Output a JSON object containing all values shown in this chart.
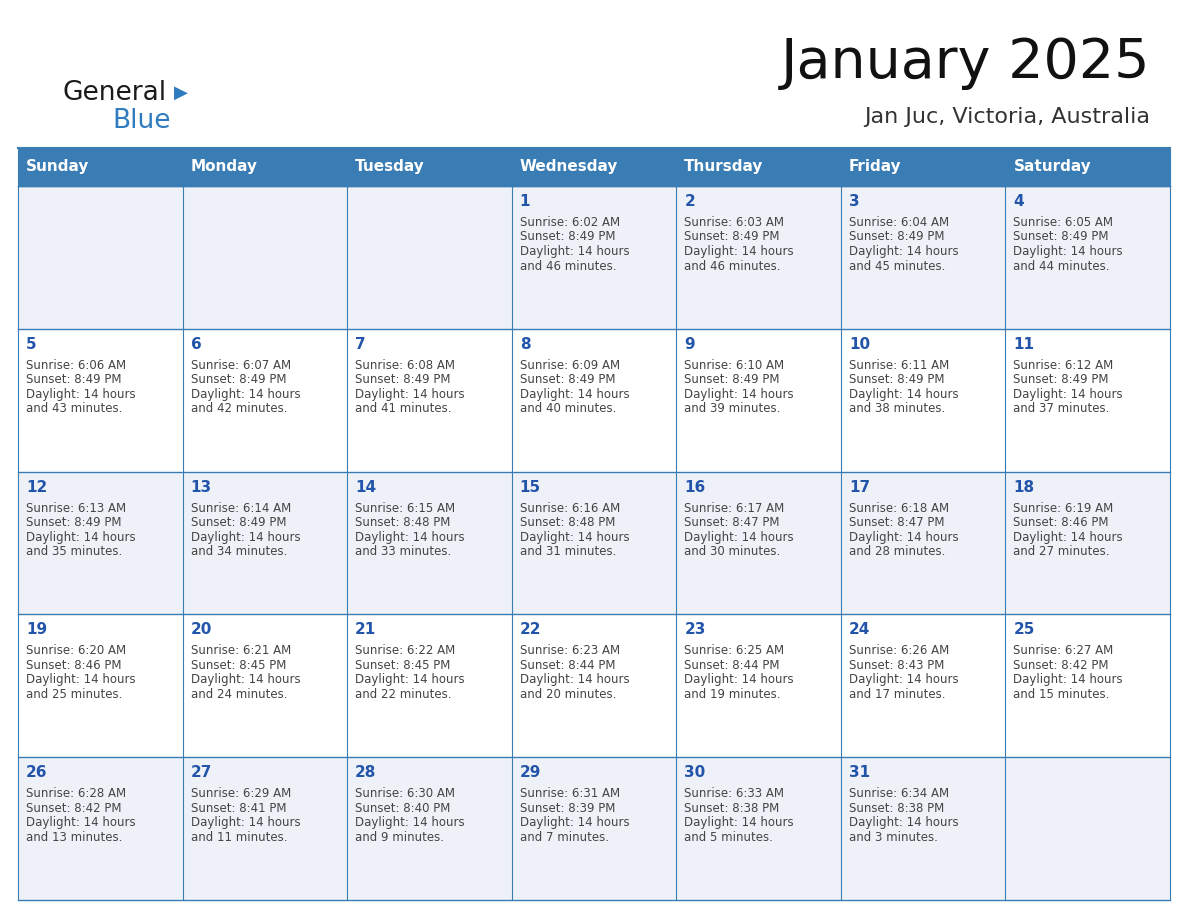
{
  "title": "January 2025",
  "subtitle": "Jan Juc, Victoria, Australia",
  "days_of_week": [
    "Sunday",
    "Monday",
    "Tuesday",
    "Wednesday",
    "Thursday",
    "Friday",
    "Saturday"
  ],
  "header_bg": "#3a7db5",
  "header_text": "#ffffff",
  "cell_bg_light": "#eef2f8",
  "cell_bg_white": "#ffffff",
  "day_num_color": "#2255aa",
  "text_color": "#444444",
  "border_color": "#3a7db5",
  "row_separator_color": "#3a7db5",
  "calendar": [
    [
      {
        "day": null,
        "sunrise": null,
        "sunset": null,
        "daylight": null
      },
      {
        "day": null,
        "sunrise": null,
        "sunset": null,
        "daylight": null
      },
      {
        "day": null,
        "sunrise": null,
        "sunset": null,
        "daylight": null
      },
      {
        "day": 1,
        "sunrise": "6:02 AM",
        "sunset": "8:49 PM",
        "daylight": "14 hours and 46 minutes."
      },
      {
        "day": 2,
        "sunrise": "6:03 AM",
        "sunset": "8:49 PM",
        "daylight": "14 hours and 46 minutes."
      },
      {
        "day": 3,
        "sunrise": "6:04 AM",
        "sunset": "8:49 PM",
        "daylight": "14 hours and 45 minutes."
      },
      {
        "day": 4,
        "sunrise": "6:05 AM",
        "sunset": "8:49 PM",
        "daylight": "14 hours and 44 minutes."
      }
    ],
    [
      {
        "day": 5,
        "sunrise": "6:06 AM",
        "sunset": "8:49 PM",
        "daylight": "14 hours and 43 minutes."
      },
      {
        "day": 6,
        "sunrise": "6:07 AM",
        "sunset": "8:49 PM",
        "daylight": "14 hours and 42 minutes."
      },
      {
        "day": 7,
        "sunrise": "6:08 AM",
        "sunset": "8:49 PM",
        "daylight": "14 hours and 41 minutes."
      },
      {
        "day": 8,
        "sunrise": "6:09 AM",
        "sunset": "8:49 PM",
        "daylight": "14 hours and 40 minutes."
      },
      {
        "day": 9,
        "sunrise": "6:10 AM",
        "sunset": "8:49 PM",
        "daylight": "14 hours and 39 minutes."
      },
      {
        "day": 10,
        "sunrise": "6:11 AM",
        "sunset": "8:49 PM",
        "daylight": "14 hours and 38 minutes."
      },
      {
        "day": 11,
        "sunrise": "6:12 AM",
        "sunset": "8:49 PM",
        "daylight": "14 hours and 37 minutes."
      }
    ],
    [
      {
        "day": 12,
        "sunrise": "6:13 AM",
        "sunset": "8:49 PM",
        "daylight": "14 hours and 35 minutes."
      },
      {
        "day": 13,
        "sunrise": "6:14 AM",
        "sunset": "8:49 PM",
        "daylight": "14 hours and 34 minutes."
      },
      {
        "day": 14,
        "sunrise": "6:15 AM",
        "sunset": "8:48 PM",
        "daylight": "14 hours and 33 minutes."
      },
      {
        "day": 15,
        "sunrise": "6:16 AM",
        "sunset": "8:48 PM",
        "daylight": "14 hours and 31 minutes."
      },
      {
        "day": 16,
        "sunrise": "6:17 AM",
        "sunset": "8:47 PM",
        "daylight": "14 hours and 30 minutes."
      },
      {
        "day": 17,
        "sunrise": "6:18 AM",
        "sunset": "8:47 PM",
        "daylight": "14 hours and 28 minutes."
      },
      {
        "day": 18,
        "sunrise": "6:19 AM",
        "sunset": "8:46 PM",
        "daylight": "14 hours and 27 minutes."
      }
    ],
    [
      {
        "day": 19,
        "sunrise": "6:20 AM",
        "sunset": "8:46 PM",
        "daylight": "14 hours and 25 minutes."
      },
      {
        "day": 20,
        "sunrise": "6:21 AM",
        "sunset": "8:45 PM",
        "daylight": "14 hours and 24 minutes."
      },
      {
        "day": 21,
        "sunrise": "6:22 AM",
        "sunset": "8:45 PM",
        "daylight": "14 hours and 22 minutes."
      },
      {
        "day": 22,
        "sunrise": "6:23 AM",
        "sunset": "8:44 PM",
        "daylight": "14 hours and 20 minutes."
      },
      {
        "day": 23,
        "sunrise": "6:25 AM",
        "sunset": "8:44 PM",
        "daylight": "14 hours and 19 minutes."
      },
      {
        "day": 24,
        "sunrise": "6:26 AM",
        "sunset": "8:43 PM",
        "daylight": "14 hours and 17 minutes."
      },
      {
        "day": 25,
        "sunrise": "6:27 AM",
        "sunset": "8:42 PM",
        "daylight": "14 hours and 15 minutes."
      }
    ],
    [
      {
        "day": 26,
        "sunrise": "6:28 AM",
        "sunset": "8:42 PM",
        "daylight": "14 hours and 13 minutes."
      },
      {
        "day": 27,
        "sunrise": "6:29 AM",
        "sunset": "8:41 PM",
        "daylight": "14 hours and 11 minutes."
      },
      {
        "day": 28,
        "sunrise": "6:30 AM",
        "sunset": "8:40 PM",
        "daylight": "14 hours and 9 minutes."
      },
      {
        "day": 29,
        "sunrise": "6:31 AM",
        "sunset": "8:39 PM",
        "daylight": "14 hours and 7 minutes."
      },
      {
        "day": 30,
        "sunrise": "6:33 AM",
        "sunset": "8:38 PM",
        "daylight": "14 hours and 5 minutes."
      },
      {
        "day": 31,
        "sunrise": "6:34 AM",
        "sunset": "8:38 PM",
        "daylight": "14 hours and 3 minutes."
      },
      {
        "day": null,
        "sunrise": null,
        "sunset": null,
        "daylight": null
      }
    ]
  ]
}
